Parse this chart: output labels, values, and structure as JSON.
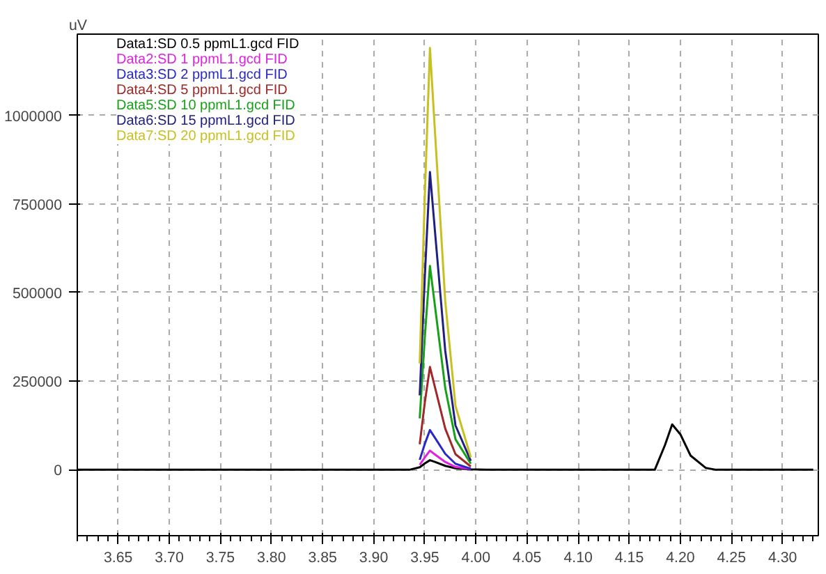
{
  "chart_data": {
    "type": "line",
    "ylabel": "uV",
    "x": [
      3.61,
      3.935,
      3.945,
      3.95,
      3.955,
      3.96,
      3.97,
      3.98,
      3.995,
      4.01,
      4.175,
      4.185,
      4.192,
      4.2,
      4.21,
      4.225,
      4.235,
      4.33
    ],
    "series": [
      {
        "name": "Data1:SD 0.5 ppmL1.gcd FID",
        "color": "#000000",
        "values": [
          0,
          0,
          7000,
          18000,
          27000,
          22000,
          11000,
          4000,
          1000,
          0,
          0,
          70000,
          128000,
          100000,
          40000,
          5000,
          0,
          0
        ]
      },
      {
        "name": "Data2:SD 1 ppmL1.gcd FID",
        "color": "#e020e0",
        "values": [
          null,
          null,
          14000,
          35000,
          54000,
          43000,
          22000,
          8000,
          2000,
          null,
          null,
          null,
          null,
          null,
          null,
          null,
          null,
          null
        ]
      },
      {
        "name": "Data3:SD 2 ppmL1.gcd FID",
        "color": "#2828c8",
        "values": [
          null,
          null,
          28000,
          73000,
          112000,
          90000,
          45000,
          17000,
          3000,
          null,
          null,
          null,
          null,
          null,
          null,
          null,
          null,
          null
        ]
      },
      {
        "name": "Data4:SD 5 ppmL1.gcd FID",
        "color": "#a02828",
        "values": [
          null,
          null,
          72000,
          190000,
          290000,
          232000,
          116000,
          44000,
          9000,
          null,
          null,
          null,
          null,
          null,
          null,
          null,
          null,
          null
        ]
      },
      {
        "name": "Data5:SD 10 ppmL1.gcd FID",
        "color": "#18a018",
        "values": [
          null,
          null,
          145000,
          375000,
          575000,
          460000,
          230000,
          86000,
          17000,
          null,
          null,
          null,
          null,
          null,
          null,
          null,
          null,
          null
        ]
      },
      {
        "name": "Data6:SD 15 ppmL1.gcd FID",
        "color": "#202080",
        "values": [
          null,
          null,
          210000,
          545000,
          840000,
          670000,
          335000,
          125000,
          25000,
          null,
          null,
          null,
          null,
          null,
          null,
          null,
          null,
          null
        ]
      },
      {
        "name": "Data7:SD 20 ppmL1.gcd FID",
        "color": "#c8c020",
        "values": [
          null,
          null,
          300000,
          775000,
          1190000,
          950000,
          475000,
          180000,
          35000,
          null,
          null,
          null,
          null,
          null,
          null,
          null,
          null,
          null
        ]
      }
    ],
    "xlim": [
      3.61,
      4.335
    ],
    "ylim": [
      -186000,
      1229000
    ],
    "xticks": [
      {
        "value": 3.65,
        "label": "3.65"
      },
      {
        "value": 3.7,
        "label": "3.70"
      },
      {
        "value": 3.75,
        "label": "3.75"
      },
      {
        "value": 3.8,
        "label": "3.80"
      },
      {
        "value": 3.85,
        "label": "3.85"
      },
      {
        "value": 3.9,
        "label": "3.90"
      },
      {
        "value": 3.95,
        "label": "3.95"
      },
      {
        "value": 4.0,
        "label": "4.00"
      },
      {
        "value": 4.05,
        "label": "4.05"
      },
      {
        "value": 4.1,
        "label": "4.10"
      },
      {
        "value": 4.15,
        "label": "4.15"
      },
      {
        "value": 4.2,
        "label": "4.20"
      },
      {
        "value": 4.25,
        "label": "4.25"
      },
      {
        "value": 4.3,
        "label": "4.30"
      }
    ],
    "yticks": [
      {
        "value": 0,
        "label": "0"
      },
      {
        "value": 250000,
        "label": "250000"
      },
      {
        "value": 500000,
        "label": "500000"
      },
      {
        "value": 750000,
        "label": "750000"
      },
      {
        "value": 1000000,
        "label": "1000000"
      }
    ],
    "grid": true,
    "legend": "top left",
    "line_style": "solid",
    "marker": "none"
  }
}
